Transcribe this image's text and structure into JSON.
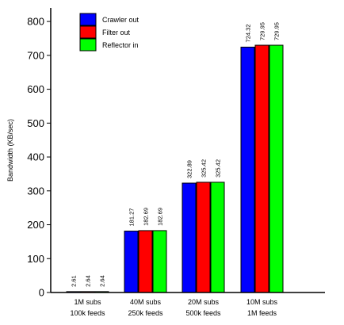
{
  "chart_data": {
    "type": "bar",
    "ylabel": "Bandwidth (KB/sec)",
    "xlabel": "",
    "ylim": [
      0,
      840
    ],
    "yticks": [
      0,
      100,
      200,
      300,
      400,
      500,
      600,
      700,
      800
    ],
    "categories": [
      {
        "line1": "1M subs",
        "line2": "100k feeds"
      },
      {
        "line1": "40M subs",
        "line2": "250k feeds"
      },
      {
        "line1": "20M subs",
        "line2": "500k feeds"
      },
      {
        "line1": "10M subs",
        "line2": "1M feeds"
      }
    ],
    "series": [
      {
        "name": "Crawler out",
        "color": "#0000ff",
        "values": [
          2.61,
          181.27,
          322.89,
          724.32
        ],
        "labels": [
          "2.61",
          "181.27",
          "322.89",
          "724.32"
        ]
      },
      {
        "name": "Filter out",
        "color": "#ff0000",
        "values": [
          2.64,
          182.69,
          325.42,
          729.95
        ],
        "labels": [
          "2.64",
          "182.69",
          "325.42",
          "729.95"
        ]
      },
      {
        "name": "Reflector in",
        "color": "#00ff00",
        "values": [
          2.64,
          182.69,
          325.42,
          729.95
        ],
        "labels": [
          "2.64",
          "182.69",
          "325.42",
          "729.95"
        ]
      }
    ],
    "legend_position": "top-left",
    "grid": false
  }
}
